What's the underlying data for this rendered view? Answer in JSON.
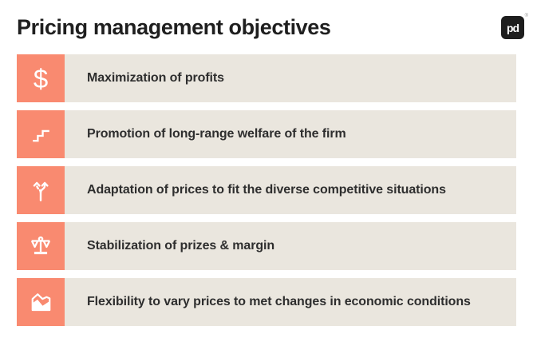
{
  "page": {
    "title": "Pricing management objectives"
  },
  "logo": {
    "text": "pd",
    "registered_mark": "®"
  },
  "colors": {
    "accent": "#F98A70",
    "bar_bg": "#EAE6DE",
    "title": "#1F1F1F",
    "text": "#2E2E2E",
    "logo_bg": "#1D1D1D",
    "canvas_bg": "#FFFFFF"
  },
  "objectives": [
    {
      "icon": "dollar-icon",
      "label": "Maximization of profits"
    },
    {
      "icon": "stairs-icon",
      "label": "Promotion of long-range welfare of the firm"
    },
    {
      "icon": "diverging-path-icon",
      "label": "Adaptation of prices to fit the diverse competitive situations"
    },
    {
      "icon": "balance-scale-icon",
      "label": "Stabilization of prizes & margin"
    },
    {
      "icon": "area-chart-icon",
      "label": "Flexibility to vary prices to met changes in economic conditions"
    }
  ]
}
